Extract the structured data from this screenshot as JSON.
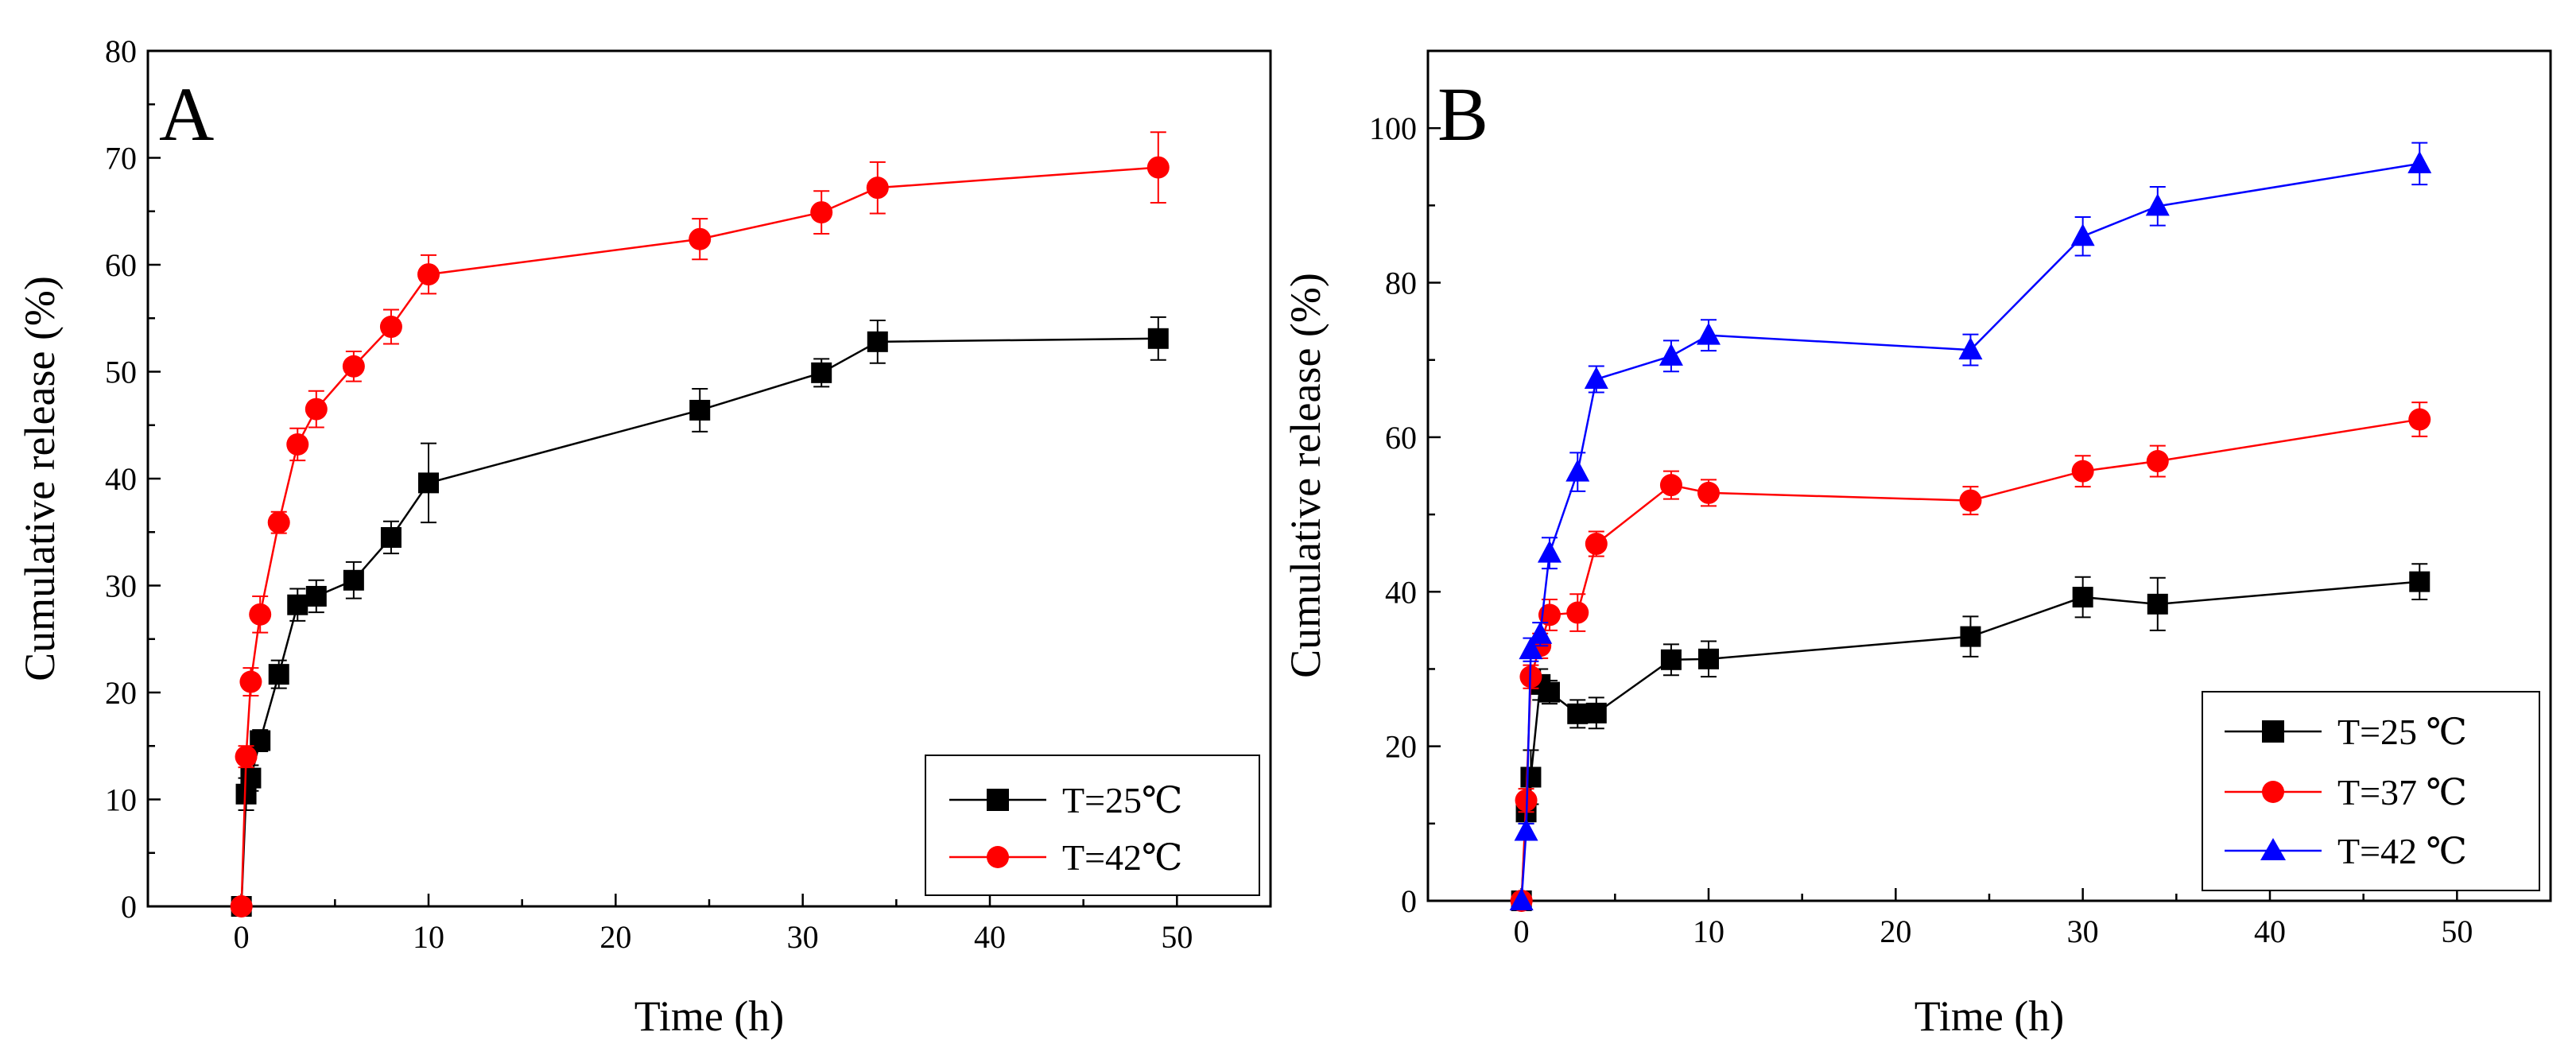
{
  "chart_data": [
    {
      "type": "line",
      "panel_label": "A",
      "xlabel": "Time (h)",
      "ylabel": "Cumulative release (%)",
      "xlim": [
        -5,
        55
      ],
      "ylim": [
        0,
        80
      ],
      "xticks": [
        0,
        10,
        20,
        30,
        40,
        50
      ],
      "yticks": [
        0,
        10,
        20,
        30,
        40,
        50,
        60,
        70,
        80
      ],
      "legend_position": "bottom-right",
      "series": [
        {
          "name": "T=25℃",
          "color": "#000000",
          "marker": "square",
          "x": [
            0,
            0.25,
            0.5,
            1,
            2,
            3,
            4,
            6,
            8,
            10,
            24.5,
            31,
            34,
            49
          ],
          "y": [
            0,
            10.5,
            12,
            15.5,
            21.7,
            28.2,
            29,
            30.5,
            34.5,
            39.6,
            46.4,
            49.9,
            52.8,
            53.1
          ],
          "err": [
            0,
            1.5,
            1.2,
            1.0,
            1.3,
            1.5,
            1.5,
            1.7,
            1.5,
            3.7,
            2.0,
            1.3,
            2.0,
            2.0
          ]
        },
        {
          "name": "T=42℃",
          "color": "#ff0000",
          "marker": "circle",
          "x": [
            0,
            0.25,
            0.5,
            1,
            2,
            3,
            4,
            6,
            8,
            10,
            24.5,
            31,
            34,
            49
          ],
          "y": [
            0,
            14,
            21,
            27.3,
            35.9,
            43.2,
            46.5,
            50.5,
            54.2,
            59.1,
            62.4,
            64.9,
            67.2,
            69.1
          ],
          "err": [
            0,
            1.0,
            1.3,
            1.7,
            1.0,
            1.5,
            1.7,
            1.4,
            1.6,
            1.8,
            1.9,
            2.0,
            2.4,
            3.3
          ]
        }
      ]
    },
    {
      "type": "line",
      "panel_label": "B",
      "xlabel": "Time (h)",
      "ylabel": "Cumulative release (%)",
      "xlim": [
        -5,
        55
      ],
      "ylim": [
        0,
        110
      ],
      "xticks": [
        0,
        10,
        20,
        30,
        40,
        50
      ],
      "yticks": [
        0,
        20,
        40,
        60,
        80,
        100
      ],
      "legend_position": "bottom-right",
      "series": [
        {
          "name": "T=25 ℃",
          "color": "#000000",
          "marker": "square",
          "x": [
            0,
            0.25,
            0.5,
            1,
            1.5,
            3,
            4,
            8,
            10,
            24,
            30,
            34,
            48
          ],
          "y": [
            0,
            11.5,
            16,
            28,
            27,
            24.2,
            24.3,
            31.2,
            31.3,
            34.2,
            39.3,
            38.4,
            41.3
          ],
          "err": [
            0,
            1.5,
            3.5,
            2.0,
            1.5,
            1.8,
            2.0,
            2.0,
            2.3,
            2.6,
            2.6,
            3.4,
            2.3
          ]
        },
        {
          "name": "T=37 ℃",
          "color": "#ff0000",
          "marker": "circle",
          "x": [
            0,
            0.25,
            0.5,
            1,
            1.5,
            3,
            4,
            8,
            10,
            24,
            30,
            34,
            48
          ],
          "y": [
            0,
            13,
            29,
            33,
            37,
            37.3,
            46.2,
            53.8,
            52.8,
            51.8,
            55.6,
            56.9,
            62.3
          ],
          "err": [
            0,
            1.5,
            1.5,
            1.6,
            2.0,
            2.4,
            1.6,
            1.8,
            1.7,
            1.8,
            2.0,
            2.0,
            2.2
          ]
        },
        {
          "name": "T=42 ℃",
          "color": "#0000ff",
          "marker": "triangle",
          "x": [
            0,
            0.25,
            0.5,
            1,
            1.5,
            3,
            4,
            8,
            10,
            24,
            30,
            34,
            48
          ],
          "y": [
            0,
            9,
            32.5,
            34.5,
            45,
            55.5,
            67.5,
            70.5,
            73.2,
            71.3,
            86,
            89.9,
            95.4
          ],
          "err": [
            0,
            1.0,
            1.5,
            1.5,
            2.0,
            2.5,
            1.7,
            2.0,
            2.0,
            2.0,
            2.5,
            2.5,
            2.7
          ]
        }
      ]
    }
  ]
}
